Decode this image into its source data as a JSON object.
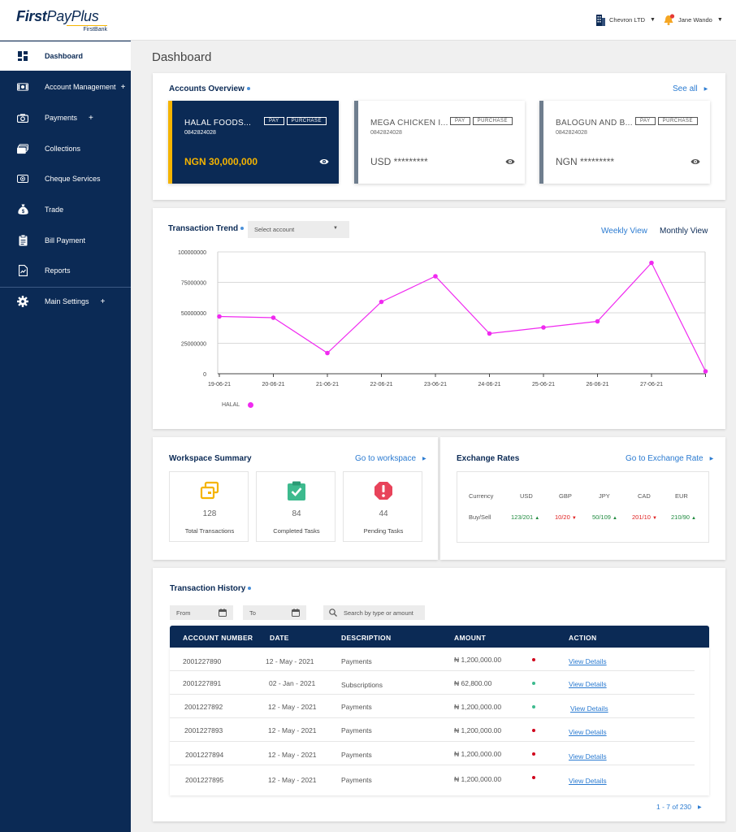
{
  "brand": {
    "name_first": "First",
    "name_rest": "PayPlus",
    "sub": "FirstBank"
  },
  "header": {
    "org": "Chevron LTD",
    "user": "Jane Wando"
  },
  "colors": {
    "navy": "#0b2a55",
    "gold": "#f5b400",
    "link": "#2b7bd1",
    "series": "#f02af0"
  },
  "sidebar": {
    "items": [
      {
        "label": "Dashboard",
        "icon": "dashboard-icon",
        "plus": ""
      },
      {
        "label": "Account Management",
        "icon": "money-icon",
        "plus": "+"
      },
      {
        "label": "Payments",
        "icon": "camera-icon",
        "plus": "+"
      },
      {
        "label": "Collections",
        "icon": "collections-icon",
        "plus": ""
      },
      {
        "label": "Cheque Services",
        "icon": "cheque-icon",
        "plus": ""
      },
      {
        "label": "Trade",
        "icon": "moneybag-icon",
        "plus": ""
      },
      {
        "label": "Bill Payment",
        "icon": "clipboard-icon",
        "plus": ""
      },
      {
        "label": "Reports",
        "icon": "report-icon",
        "plus": ""
      },
      {
        "label": "Main Settings",
        "icon": "gear-icon",
        "plus": "+"
      }
    ]
  },
  "page": {
    "title": "Dashboard"
  },
  "accounts": {
    "title": "Accounts  Overview",
    "see_all": "See all",
    "pay_label": "PAY",
    "purchase_label": "PURCHASE",
    "cards": [
      {
        "name": "HALAL FOODS...",
        "number": "0842824028",
        "balance": "NGN 30,000,000"
      },
      {
        "name": "MEGA CHICKEN I...",
        "number": "0842824028",
        "balance": "USD *********"
      },
      {
        "name": "BALOGUN AND B...",
        "number": "0842824028",
        "balance": "NGN *********"
      }
    ]
  },
  "trend": {
    "title": "Transaction Trend",
    "select_placeholder": "Select account",
    "weekly": "Weekly View",
    "monthly": "Monthly View",
    "legend": "HALAL"
  },
  "chart_data": {
    "type": "line",
    "x": [
      "19-06-21",
      "20-06-21",
      "21-06-21",
      "22-06-21",
      "23-06-21",
      "24-06-21",
      "25-06-21",
      "26-06-21",
      "27-06-21",
      ""
    ],
    "series": [
      {
        "name": "HALAL",
        "values": [
          47000000,
          46000000,
          17000000,
          59000000,
          80000000,
          33000000,
          38000000,
          43000000,
          91000000,
          2000000
        ]
      }
    ],
    "yticks": [
      "0",
      "25000000",
      "50000000",
      "75000000",
      "100000000"
    ],
    "ylim": [
      0,
      100000000
    ],
    "legend_position": "bottom-left"
  },
  "workspace": {
    "title": "Workspace Summary",
    "link": "Go to workspace",
    "items": [
      {
        "value": "128",
        "label": "Total Transactions",
        "icon": "transactions-icon"
      },
      {
        "value": "84",
        "label": "Completed Tasks",
        "icon": "clipboard-check-icon"
      },
      {
        "value": "44",
        "label": "Pending Tasks",
        "icon": "alert-icon"
      }
    ]
  },
  "exchange": {
    "title": "Exchange Rates",
    "link": "Go to Exchange Rate",
    "header_label": "Currency",
    "row_label": "Buy/Sell",
    "currencies": [
      {
        "code": "USD",
        "rate": "123/201",
        "trend": "up"
      },
      {
        "code": "GBP",
        "rate": "10/20",
        "trend": "down"
      },
      {
        "code": "JPY",
        "rate": "50/109",
        "trend": "up"
      },
      {
        "code": "CAD",
        "rate": "201/10",
        "trend": "down"
      },
      {
        "code": "EUR",
        "rate": "210/90",
        "trend": "up"
      }
    ]
  },
  "history": {
    "title": "Transaction History",
    "from": "From",
    "to": "To",
    "search_placeholder": "Search by type or amount",
    "columns": [
      "ACCOUNT NUMBER",
      "DATE",
      "DESCRIPTION",
      "AMOUNT",
      "ACTION"
    ],
    "rows": [
      {
        "account": "2001227890",
        "date": "12 - May - 2021",
        "description": "Payments",
        "amount": "₦ 1,200,000.00",
        "status": "red",
        "action": "View Details"
      },
      {
        "account": "2001227891",
        "date": "02 - Jan - 2021",
        "description": "Subscriptions",
        "amount": "₦ 62,800.00",
        "status": "green",
        "action": "View Details"
      },
      {
        "account": "2001227892",
        "date": "12 - May - 2021",
        "description": "Payments",
        "amount": "₦ 1,200,000.00",
        "status": "green",
        "action": "View Details"
      },
      {
        "account": "2001227893",
        "date": "12 - May - 2021",
        "description": "Payments",
        "amount": "₦ 1,200,000.00",
        "status": "red",
        "action": "View Details"
      },
      {
        "account": "2001227894",
        "date": "12 - May - 2021",
        "description": "Payments",
        "amount": "₦ 1,200,000.00",
        "status": "red",
        "action": "View Details"
      },
      {
        "account": "2001227895",
        "date": "12 - May - 2021",
        "description": "Payments",
        "amount": "₦ 1,200,000.00",
        "status": "red",
        "action": "View Details"
      }
    ],
    "pager": "1 - 7 of 230"
  }
}
